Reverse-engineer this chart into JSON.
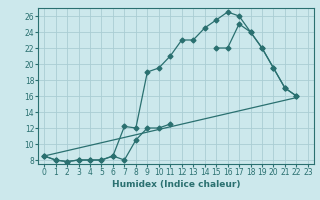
{
  "xlabel": "Humidex (Indice chaleur)",
  "background_color": "#cce8ec",
  "grid_color": "#aacdd4",
  "line_color": "#2a7070",
  "xlim": [
    -0.5,
    23.5
  ],
  "ylim": [
    7.5,
    27
  ],
  "xticks": [
    0,
    1,
    2,
    3,
    4,
    5,
    6,
    7,
    8,
    9,
    10,
    11,
    12,
    13,
    14,
    15,
    16,
    17,
    18,
    19,
    20,
    21,
    22,
    23
  ],
  "yticks": [
    8,
    10,
    12,
    14,
    16,
    18,
    20,
    22,
    24,
    26
  ],
  "line1_x": [
    0,
    1,
    2,
    3,
    4,
    5,
    6,
    7,
    8,
    9,
    10,
    11,
    12,
    13,
    14,
    15,
    16,
    17,
    18,
    19,
    20,
    21,
    22
  ],
  "line1_y": [
    8.5,
    8.0,
    7.8,
    8.0,
    8.0,
    8.0,
    8.5,
    12.2,
    12.0,
    19.0,
    19.5,
    21.0,
    23.0,
    23.0,
    24.5,
    25.5,
    26.5,
    26.0,
    24.0,
    22.0,
    19.5,
    17.0,
    16.0
  ],
  "line2_seg1_x": [
    0,
    1,
    2,
    3,
    4,
    5,
    6,
    7,
    8,
    9,
    10,
    11
  ],
  "line2_seg1_y": [
    8.5,
    8.0,
    7.8,
    8.0,
    8.0,
    8.0,
    8.5,
    8.0,
    10.5,
    12.0,
    12.0,
    12.5
  ],
  "line2_seg2_x": [
    15,
    16,
    17,
    18,
    19,
    20,
    21,
    22
  ],
  "line2_seg2_y": [
    22.0,
    22.0,
    25.0,
    24.0,
    22.0,
    19.5,
    17.0,
    16.0
  ],
  "line3_x": [
    0,
    22
  ],
  "line3_y": [
    8.5,
    15.8
  ]
}
